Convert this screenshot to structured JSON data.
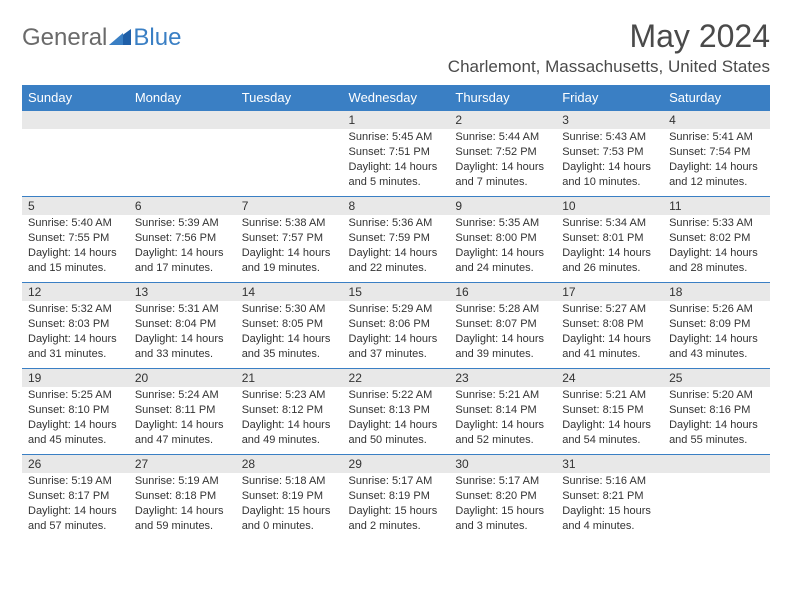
{
  "brand": {
    "general": "General",
    "blue": "Blue"
  },
  "title": "May 2024",
  "location": "Charlemont, Massachusetts, United States",
  "colors": {
    "header_bg": "#3a7fc4",
    "header_text": "#ffffff",
    "daynum_bg": "#e8e8e8",
    "border": "#3a7fc4",
    "text": "#333333",
    "logo_gray": "#6a6a6a",
    "logo_blue": "#3a7fc4"
  },
  "weekdays": [
    "Sunday",
    "Monday",
    "Tuesday",
    "Wednesday",
    "Thursday",
    "Friday",
    "Saturday"
  ],
  "weeks": [
    [
      {
        "n": "",
        "sr": "",
        "ss": "",
        "dl": ""
      },
      {
        "n": "",
        "sr": "",
        "ss": "",
        "dl": ""
      },
      {
        "n": "",
        "sr": "",
        "ss": "",
        "dl": ""
      },
      {
        "n": "1",
        "sr": "Sunrise: 5:45 AM",
        "ss": "Sunset: 7:51 PM",
        "dl": "Daylight: 14 hours and 5 minutes."
      },
      {
        "n": "2",
        "sr": "Sunrise: 5:44 AM",
        "ss": "Sunset: 7:52 PM",
        "dl": "Daylight: 14 hours and 7 minutes."
      },
      {
        "n": "3",
        "sr": "Sunrise: 5:43 AM",
        "ss": "Sunset: 7:53 PM",
        "dl": "Daylight: 14 hours and 10 minutes."
      },
      {
        "n": "4",
        "sr": "Sunrise: 5:41 AM",
        "ss": "Sunset: 7:54 PM",
        "dl": "Daylight: 14 hours and 12 minutes."
      }
    ],
    [
      {
        "n": "5",
        "sr": "Sunrise: 5:40 AM",
        "ss": "Sunset: 7:55 PM",
        "dl": "Daylight: 14 hours and 15 minutes."
      },
      {
        "n": "6",
        "sr": "Sunrise: 5:39 AM",
        "ss": "Sunset: 7:56 PM",
        "dl": "Daylight: 14 hours and 17 minutes."
      },
      {
        "n": "7",
        "sr": "Sunrise: 5:38 AM",
        "ss": "Sunset: 7:57 PM",
        "dl": "Daylight: 14 hours and 19 minutes."
      },
      {
        "n": "8",
        "sr": "Sunrise: 5:36 AM",
        "ss": "Sunset: 7:59 PM",
        "dl": "Daylight: 14 hours and 22 minutes."
      },
      {
        "n": "9",
        "sr": "Sunrise: 5:35 AM",
        "ss": "Sunset: 8:00 PM",
        "dl": "Daylight: 14 hours and 24 minutes."
      },
      {
        "n": "10",
        "sr": "Sunrise: 5:34 AM",
        "ss": "Sunset: 8:01 PM",
        "dl": "Daylight: 14 hours and 26 minutes."
      },
      {
        "n": "11",
        "sr": "Sunrise: 5:33 AM",
        "ss": "Sunset: 8:02 PM",
        "dl": "Daylight: 14 hours and 28 minutes."
      }
    ],
    [
      {
        "n": "12",
        "sr": "Sunrise: 5:32 AM",
        "ss": "Sunset: 8:03 PM",
        "dl": "Daylight: 14 hours and 31 minutes."
      },
      {
        "n": "13",
        "sr": "Sunrise: 5:31 AM",
        "ss": "Sunset: 8:04 PM",
        "dl": "Daylight: 14 hours and 33 minutes."
      },
      {
        "n": "14",
        "sr": "Sunrise: 5:30 AM",
        "ss": "Sunset: 8:05 PM",
        "dl": "Daylight: 14 hours and 35 minutes."
      },
      {
        "n": "15",
        "sr": "Sunrise: 5:29 AM",
        "ss": "Sunset: 8:06 PM",
        "dl": "Daylight: 14 hours and 37 minutes."
      },
      {
        "n": "16",
        "sr": "Sunrise: 5:28 AM",
        "ss": "Sunset: 8:07 PM",
        "dl": "Daylight: 14 hours and 39 minutes."
      },
      {
        "n": "17",
        "sr": "Sunrise: 5:27 AM",
        "ss": "Sunset: 8:08 PM",
        "dl": "Daylight: 14 hours and 41 minutes."
      },
      {
        "n": "18",
        "sr": "Sunrise: 5:26 AM",
        "ss": "Sunset: 8:09 PM",
        "dl": "Daylight: 14 hours and 43 minutes."
      }
    ],
    [
      {
        "n": "19",
        "sr": "Sunrise: 5:25 AM",
        "ss": "Sunset: 8:10 PM",
        "dl": "Daylight: 14 hours and 45 minutes."
      },
      {
        "n": "20",
        "sr": "Sunrise: 5:24 AM",
        "ss": "Sunset: 8:11 PM",
        "dl": "Daylight: 14 hours and 47 minutes."
      },
      {
        "n": "21",
        "sr": "Sunrise: 5:23 AM",
        "ss": "Sunset: 8:12 PM",
        "dl": "Daylight: 14 hours and 49 minutes."
      },
      {
        "n": "22",
        "sr": "Sunrise: 5:22 AM",
        "ss": "Sunset: 8:13 PM",
        "dl": "Daylight: 14 hours and 50 minutes."
      },
      {
        "n": "23",
        "sr": "Sunrise: 5:21 AM",
        "ss": "Sunset: 8:14 PM",
        "dl": "Daylight: 14 hours and 52 minutes."
      },
      {
        "n": "24",
        "sr": "Sunrise: 5:21 AM",
        "ss": "Sunset: 8:15 PM",
        "dl": "Daylight: 14 hours and 54 minutes."
      },
      {
        "n": "25",
        "sr": "Sunrise: 5:20 AM",
        "ss": "Sunset: 8:16 PM",
        "dl": "Daylight: 14 hours and 55 minutes."
      }
    ],
    [
      {
        "n": "26",
        "sr": "Sunrise: 5:19 AM",
        "ss": "Sunset: 8:17 PM",
        "dl": "Daylight: 14 hours and 57 minutes."
      },
      {
        "n": "27",
        "sr": "Sunrise: 5:19 AM",
        "ss": "Sunset: 8:18 PM",
        "dl": "Daylight: 14 hours and 59 minutes."
      },
      {
        "n": "28",
        "sr": "Sunrise: 5:18 AM",
        "ss": "Sunset: 8:19 PM",
        "dl": "Daylight: 15 hours and 0 minutes."
      },
      {
        "n": "29",
        "sr": "Sunrise: 5:17 AM",
        "ss": "Sunset: 8:19 PM",
        "dl": "Daylight: 15 hours and 2 minutes."
      },
      {
        "n": "30",
        "sr": "Sunrise: 5:17 AM",
        "ss": "Sunset: 8:20 PM",
        "dl": "Daylight: 15 hours and 3 minutes."
      },
      {
        "n": "31",
        "sr": "Sunrise: 5:16 AM",
        "ss": "Sunset: 8:21 PM",
        "dl": "Daylight: 15 hours and 4 minutes."
      },
      {
        "n": "",
        "sr": "",
        "ss": "",
        "dl": ""
      }
    ]
  ]
}
